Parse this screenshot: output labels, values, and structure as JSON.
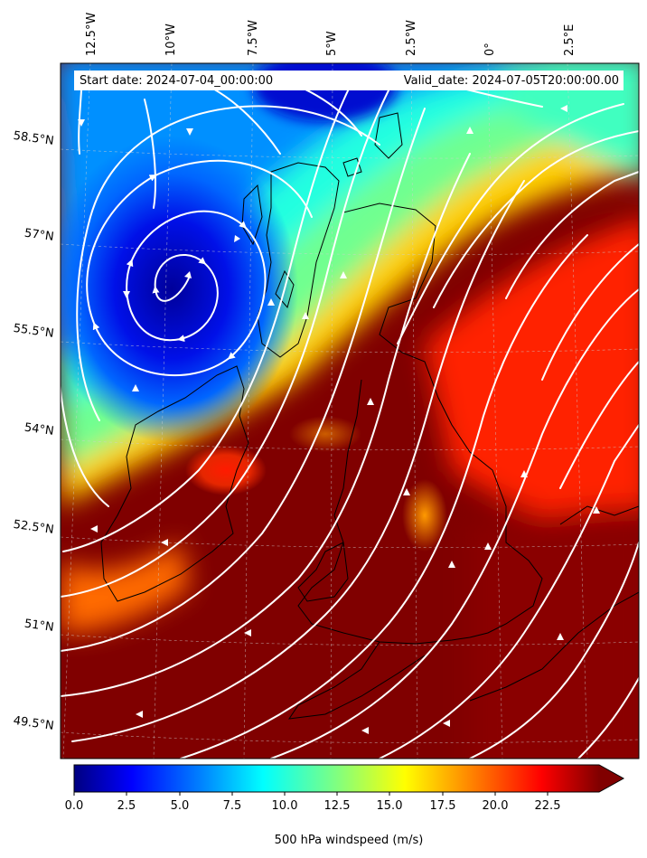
{
  "header": {
    "start_date": "Start date: 2024-07-04_00:00:00",
    "valid_date": "Valid_date: 2024-07-05T20:00:00.00"
  },
  "map": {
    "variable": "500 hPa windspeed",
    "units": "m/s",
    "longitude_labels": [
      "12.5°W",
      "10°W",
      "7.5°W",
      "5°W",
      "2.5°W",
      "0°",
      "2.5°E"
    ],
    "latitude_labels": [
      "58.5°N",
      "57°N",
      "55.5°N",
      "54°N",
      "52.5°N",
      "51°N",
      "49.5°N"
    ],
    "field_description": "jet-colormap filled contours of wind speed with white streamlines; a low centred west of Scotland (calm core) and strong southwest flow over England, Wales and the North Sea"
  },
  "colorbar": {
    "label": "500 hPa windspeed (m/s)",
    "ticks": [
      "0.0",
      "2.5",
      "5.0",
      "7.5",
      "10.0",
      "12.5",
      "15.0",
      "17.5",
      "20.0",
      "22.5"
    ],
    "min": 0,
    "max": 25,
    "extend": "max",
    "colormap": "jet",
    "colors": [
      "#000080",
      "#0000ff",
      "#0080ff",
      "#00ffff",
      "#80ff80",
      "#ffff00",
      "#ff8000",
      "#ff0000",
      "#800000"
    ]
  }
}
